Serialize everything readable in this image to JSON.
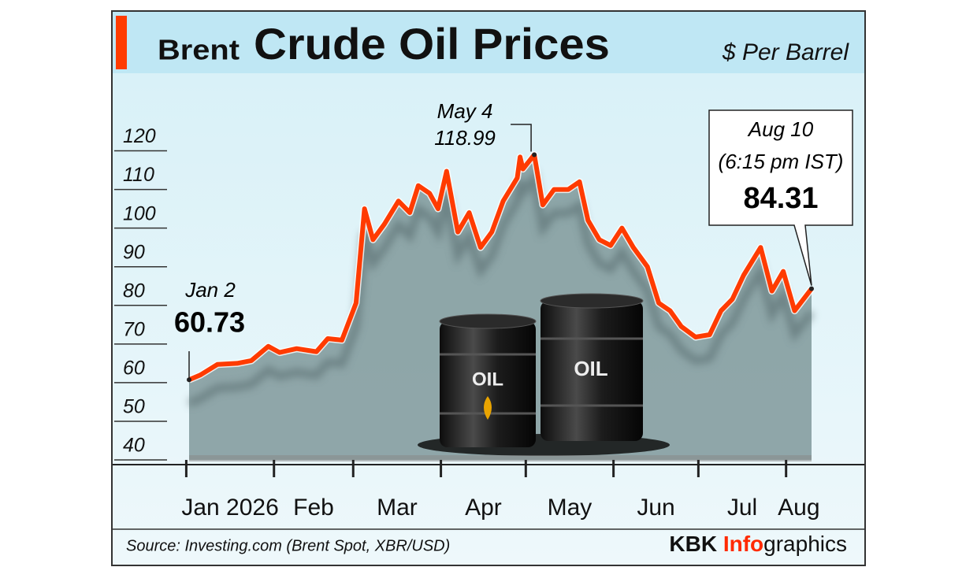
{
  "chart_data": {
    "type": "line",
    "title_prefix": "Brent",
    "title": "Crude Oil Prices",
    "y_label": "$ Per Barrel",
    "source": "Source: Investing.com (Brent Spot, XBR/USD)",
    "credit": {
      "brand": "KBK",
      "highlight": "Info",
      "rest": "graphics"
    },
    "illustration_labels": [
      "OIL",
      "OIL"
    ],
    "x": [
      "2026-01-02",
      "2026-01-06",
      "2026-01-12",
      "2026-01-19",
      "2026-01-24",
      "2026-01-30",
      "2026-02-03",
      "2026-02-09",
      "2026-02-16",
      "2026-02-20",
      "2026-02-25",
      "2026-03-02",
      "2026-03-05",
      "2026-03-08",
      "2026-03-12",
      "2026-03-17",
      "2026-03-21",
      "2026-03-24",
      "2026-03-28",
      "2026-03-31",
      "2026-04-03",
      "2026-04-07",
      "2026-04-11",
      "2026-04-15",
      "2026-04-19",
      "2026-04-23",
      "2026-04-28",
      "2026-04-29",
      "2026-04-30",
      "2026-05-04",
      "2026-05-07",
      "2026-05-11",
      "2026-05-16",
      "2026-05-20",
      "2026-05-23",
      "2026-05-27",
      "2026-05-31",
      "2026-06-04",
      "2026-06-08",
      "2026-06-13",
      "2026-06-17",
      "2026-06-21",
      "2026-06-25",
      "2026-06-30",
      "2026-07-05",
      "2026-07-09",
      "2026-07-13",
      "2026-07-17",
      "2026-07-23",
      "2026-07-27",
      "2026-07-31",
      "2026-08-04",
      "2026-08-10"
    ],
    "series": [
      {
        "name": "Brent",
        "color": "#ff3b00",
        "values": [
          60.73,
          62,
          64.7,
          65,
          65.7,
          69.4,
          67.8,
          68.8,
          68,
          71.4,
          71,
          80.6,
          105,
          97,
          101,
          107,
          104,
          111,
          109,
          105,
          114.7,
          99,
          104,
          95,
          99,
          107,
          113,
          118.4,
          115.3,
          118.99,
          106,
          110,
          110,
          112,
          102,
          97,
          95.5,
          100,
          95,
          90,
          80.6,
          78.6,
          74.5,
          71.8,
          72.4,
          78.6,
          81.6,
          87.8,
          95,
          83.7,
          88.8,
          78.6,
          84.31
        ]
      }
    ],
    "xlim": [
      "2026-01-02",
      "2026-08-10"
    ],
    "xticks": [
      {
        "value": "2026-01-01",
        "label": "Jan 2026"
      },
      {
        "value": "2026-02-01",
        "label": "Feb"
      },
      {
        "value": "2026-03-01",
        "label": "Mar"
      },
      {
        "value": "2026-04-01",
        "label": "Apr"
      },
      {
        "value": "2026-05-01",
        "label": "May"
      },
      {
        "value": "2026-06-01",
        "label": "Jun"
      },
      {
        "value": "2026-07-01",
        "label": "Jul"
      },
      {
        "value": "2026-08-01",
        "label": "Aug"
      }
    ],
    "ylim": [
      40,
      125
    ],
    "yticks": [
      40,
      50,
      60,
      70,
      80,
      90,
      100,
      110,
      120
    ],
    "grid": false,
    "area_color": "#7f989a",
    "annotations": [
      {
        "text": "Jan 2",
        "x": "2026-01-02"
      },
      {
        "text": "May 4",
        "x": "2026-05-04"
      },
      {
        "text": "Aug 10",
        "note": "(6:15 pm IST)",
        "x": "2026-08-10"
      }
    ]
  }
}
